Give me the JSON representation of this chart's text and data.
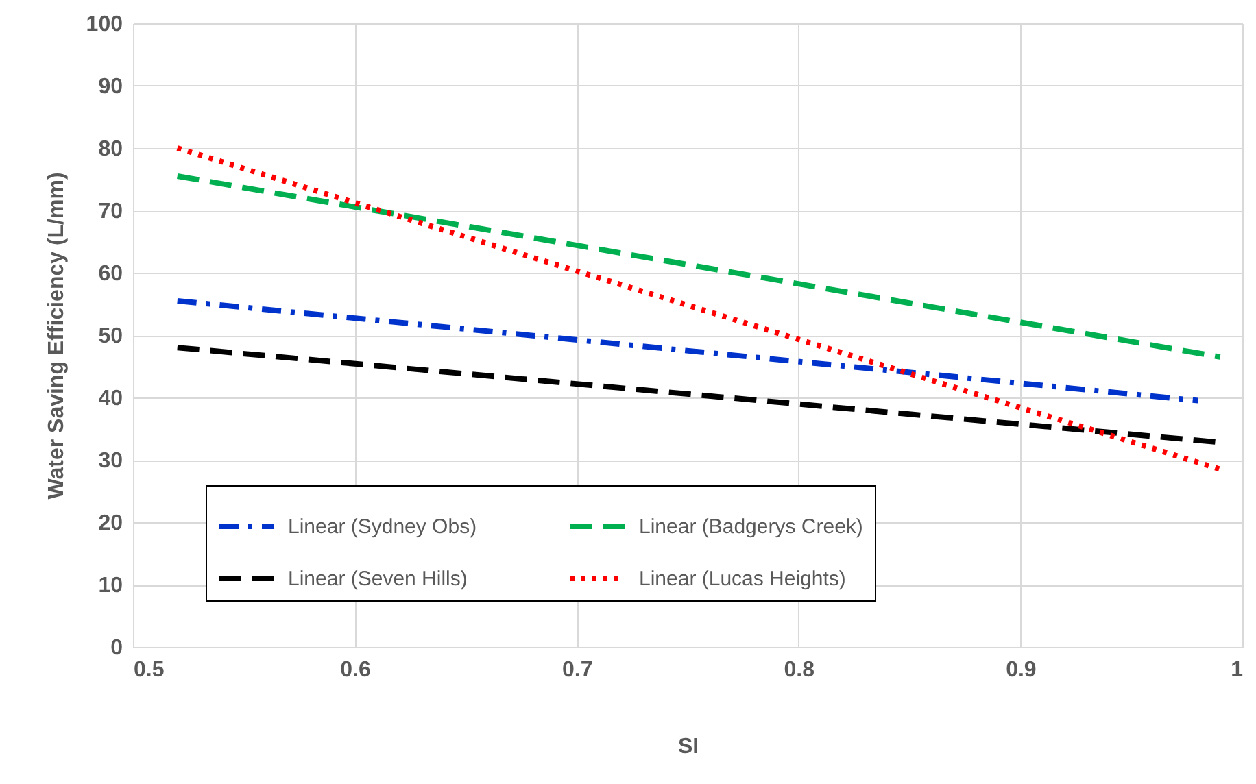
{
  "chart_data": {
    "type": "line",
    "xlabel": "SI",
    "ylabel": "Water Saving Efficiency (L/mm)",
    "xlim": [
      0.5,
      1
    ],
    "xticks": [
      0.5,
      0.6,
      0.7,
      0.8,
      0.9,
      1
    ],
    "ylim": [
      0,
      100
    ],
    "yticks": [
      0,
      10,
      20,
      30,
      40,
      50,
      60,
      70,
      80,
      90,
      100
    ],
    "grid": true,
    "legend": "bottom",
    "series": [
      {
        "name": "Linear (Sydney Obs)",
        "color": "#0033cc",
        "line_style": "dashdot",
        "x": [
          0.52,
          0.98
        ],
        "values": [
          55.5,
          39.5
        ]
      },
      {
        "name": "Linear (Badgerys Creek)",
        "color": "#00b050",
        "line_style": "dashed",
        "x": [
          0.52,
          0.99
        ],
        "values": [
          75.5,
          46.5
        ]
      },
      {
        "name": "Linear (Seven Hills)",
        "color": "#000000",
        "line_style": "dashed",
        "x": [
          0.52,
          0.99
        ],
        "values": [
          48,
          32.8
        ]
      },
      {
        "name": "Linear (Lucas Heights)",
        "color": "#ff0000",
        "line_style": "dotted",
        "x": [
          0.52,
          0.99
        ],
        "values": [
          80,
          28.5
        ]
      }
    ]
  }
}
